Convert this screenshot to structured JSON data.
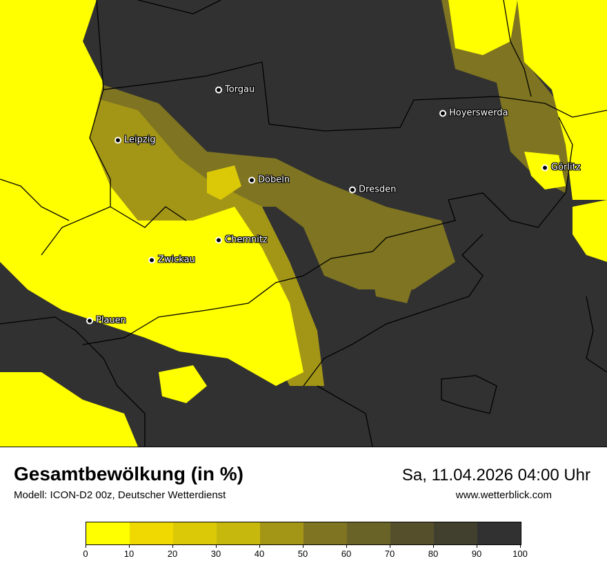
{
  "title": "Gesamtbewölkung (in %)",
  "subtitle": "Modell: ICON-D2 00z, Deutscher Wetterdienst",
  "datetime": "Sa, 11.04.2026 04:00 Uhr",
  "site": "www.wetterblick.com",
  "cities": [
    {
      "name": "Torgau"
    },
    {
      "name": "Hoyerswerda"
    },
    {
      "name": "Leipzig"
    },
    {
      "name": "Görlitz"
    },
    {
      "name": "Döbeln"
    },
    {
      "name": "Dresden"
    },
    {
      "name": "Chemnitz"
    },
    {
      "name": "Zwickau"
    },
    {
      "name": "Plauen"
    }
  ],
  "legend": {
    "ticks": [
      "0",
      "10",
      "20",
      "30",
      "40",
      "50",
      "60",
      "70",
      "80",
      "90",
      "100"
    ],
    "colors": [
      "#ffff00",
      "#efd900",
      "#dbc908",
      "#c7b80e",
      "#a39617",
      "#7e7421",
      "#6a6327",
      "#564f2b",
      "#413f2e",
      "#313131"
    ]
  }
}
